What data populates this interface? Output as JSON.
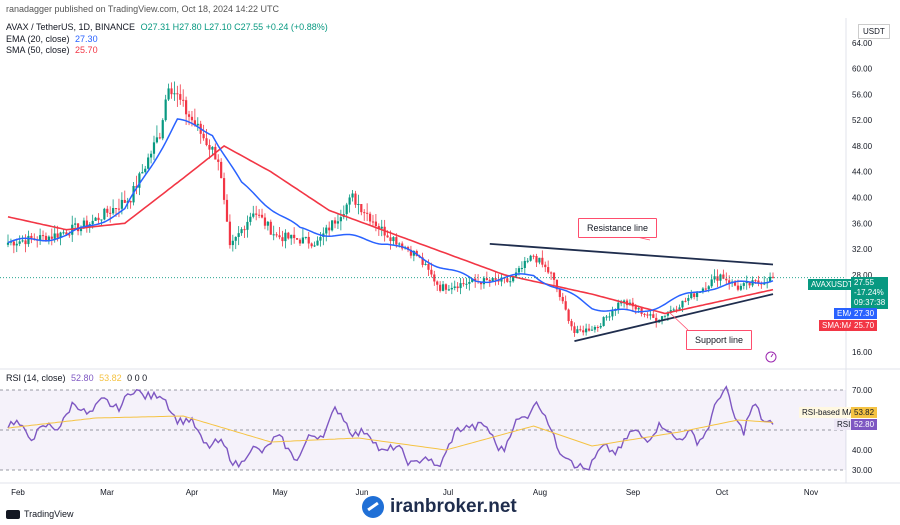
{
  "header": {
    "published": "ranadagger published on TradingView.com, Oct 18, 2024 14:22 UTC"
  },
  "legend_price": {
    "symbol": "AVAX / TetherUS, 1D, BINANCE",
    "ohlc": "O27.31 H27.80 L27.10 C27.55 +0.24 (+0.88%)",
    "ema_label": "EMA (20, close)",
    "ema_value": "27.30",
    "sma_label": "SMA (50, close)",
    "sma_value": "25.70"
  },
  "legend_rsi": {
    "label": "RSI (14, close)",
    "rsi_value": "52.80",
    "ma_value": "53.82",
    "extra": "0 0 0"
  },
  "currency": "USDT",
  "annotations": {
    "resistance": "Resistance line",
    "support": "Support line"
  },
  "price_tags": {
    "symbol": "AVAXUSDT",
    "last": "27.55",
    "change": "-17.24%",
    "countdown": "09:37:38",
    "ema_label": "EMA",
    "ema": "27.30",
    "sma_label": "SMA:MA",
    "sma": "25.70"
  },
  "rsi_tags": {
    "ma_label": "RSI-based MA",
    "ma": "53.82",
    "rsi_label": "RSI",
    "rsi": "52.80"
  },
  "footer": {
    "brand": "TradingView",
    "watermark": "iranbroker.net"
  },
  "colors": {
    "up": "#089981",
    "down": "#f23645",
    "ema": "#2962ff",
    "sma": "#f23645",
    "rsi": "#7e57c2",
    "rsi_ma": "#f5c343"
  },
  "chart_data": [
    {
      "type": "candlestick",
      "title": "AVAX / TetherUS, 1D, BINANCE",
      "yaxis": {
        "ticks": [
          "64.00",
          "60.00",
          "56.00",
          "52.00",
          "48.00",
          "44.00",
          "40.00",
          "36.00",
          "32.00",
          "28.00",
          "24.00",
          "20.00",
          "16.00"
        ],
        "range": [
          14,
          66
        ]
      },
      "xaxis": {
        "ticks": [
          "Feb",
          "Mar",
          "Apr",
          "May",
          "Jun",
          "Jul",
          "Aug",
          "Sep",
          "Oct",
          "Nov"
        ]
      },
      "grid": false,
      "anchors_close": [
        [
          0,
          33
        ],
        [
          15,
          34
        ],
        [
          28,
          36
        ],
        [
          42,
          40
        ],
        [
          52,
          50
        ],
        [
          55,
          58
        ],
        [
          60,
          54
        ],
        [
          66,
          50
        ],
        [
          72,
          46
        ],
        [
          76,
          32
        ],
        [
          84,
          38
        ],
        [
          92,
          34
        ],
        [
          106,
          33
        ],
        [
          118,
          40
        ],
        [
          128,
          35
        ],
        [
          140,
          31
        ],
        [
          148,
          26
        ],
        [
          160,
          27
        ],
        [
          172,
          27
        ],
        [
          180,
          31
        ],
        [
          186,
          28
        ],
        [
          194,
          19
        ],
        [
          202,
          20
        ],
        [
          210,
          24
        ],
        [
          222,
          21
        ],
        [
          232,
          24
        ],
        [
          244,
          28
        ],
        [
          250,
          26
        ],
        [
          258,
          27
        ],
        [
          262,
          27.55
        ]
      ],
      "anchors_ema": [
        [
          0,
          33
        ],
        [
          20,
          34
        ],
        [
          40,
          38
        ],
        [
          58,
          52
        ],
        [
          70,
          50
        ],
        [
          80,
          42
        ],
        [
          100,
          35
        ],
        [
          130,
          33
        ],
        [
          160,
          27
        ],
        [
          180,
          28
        ],
        [
          200,
          23
        ],
        [
          215,
          22
        ],
        [
          240,
          26
        ],
        [
          262,
          27.3
        ]
      ],
      "anchors_sma": [
        [
          0,
          37
        ],
        [
          20,
          35
        ],
        [
          40,
          36
        ],
        [
          60,
          43
        ],
        [
          74,
          48
        ],
        [
          90,
          44
        ],
        [
          110,
          38
        ],
        [
          140,
          33
        ],
        [
          170,
          28
        ],
        [
          200,
          25
        ],
        [
          225,
          22
        ],
        [
          245,
          24
        ],
        [
          262,
          25.7
        ]
      ],
      "resistance_line": [
        [
          165,
          32.8
        ],
        [
          262,
          29.6
        ]
      ],
      "support_line": [
        [
          194,
          17.7
        ],
        [
          262,
          25.0
        ]
      ],
      "last_price": 27.55
    },
    {
      "type": "line",
      "title": "RSI (14, close)",
      "yaxis": {
        "ticks": [
          "70.00",
          "40.00",
          "30.00"
        ],
        "range": [
          26,
          76
        ],
        "band": [
          30,
          70
        ]
      },
      "anchors_rsi": [
        [
          0,
          52
        ],
        [
          12,
          48
        ],
        [
          22,
          60
        ],
        [
          34,
          62
        ],
        [
          48,
          70
        ],
        [
          58,
          58
        ],
        [
          66,
          47
        ],
        [
          80,
          34
        ],
        [
          90,
          45
        ],
        [
          100,
          38
        ],
        [
          112,
          58
        ],
        [
          124,
          45
        ],
        [
          134,
          38
        ],
        [
          146,
          32
        ],
        [
          158,
          55
        ],
        [
          170,
          42
        ],
        [
          180,
          65
        ],
        [
          194,
          30
        ],
        [
          206,
          40
        ],
        [
          216,
          48
        ],
        [
          226,
          50
        ],
        [
          236,
          44
        ],
        [
          246,
          70
        ],
        [
          252,
          48
        ],
        [
          256,
          62
        ],
        [
          262,
          52.8
        ]
      ],
      "anchors_rsi_ma": [
        [
          0,
          51
        ],
        [
          30,
          56
        ],
        [
          60,
          57
        ],
        [
          90,
          44
        ],
        [
          120,
          46
        ],
        [
          150,
          40
        ],
        [
          180,
          52
        ],
        [
          200,
          42
        ],
        [
          230,
          49
        ],
        [
          250,
          55
        ],
        [
          262,
          53.82
        ]
      ]
    }
  ]
}
